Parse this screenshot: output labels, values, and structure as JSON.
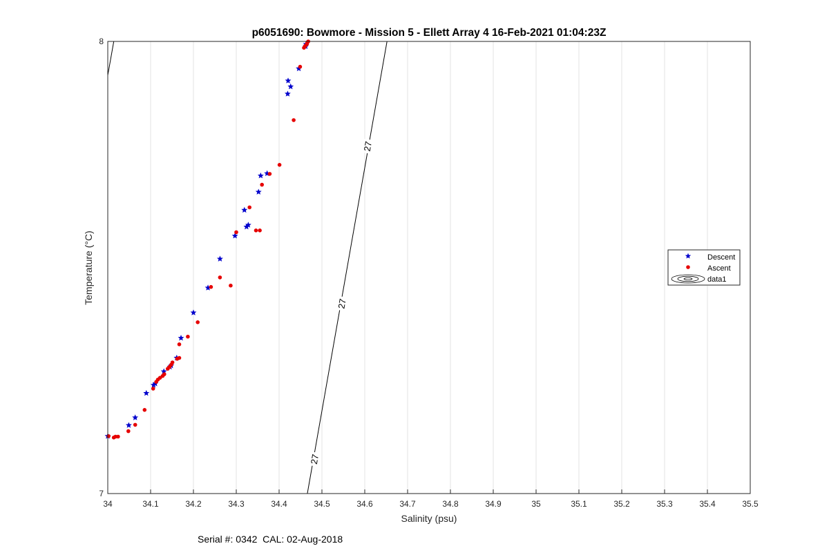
{
  "chart_data": {
    "type": "scatter",
    "title": "p6051690: Bowmore - Mission 5 - Ellett Array 4 16-Feb-2021 01:04:23Z",
    "xlabel": "Salinity (psu)",
    "ylabel": "Temperature (°C)",
    "xlim": [
      34,
      35.5
    ],
    "ylim": [
      7,
      8
    ],
    "x_ticks": [
      "34",
      "34.1",
      "34.2",
      "34.3",
      "34.4",
      "34.5",
      "34.6",
      "34.7",
      "34.8",
      "34.9",
      "35",
      "35.1",
      "35.2",
      "35.3",
      "35.4",
      "35.5"
    ],
    "y_ticks": [
      "7",
      "8"
    ],
    "grid": true,
    "legend_position": "right",
    "legend": [
      "Descent",
      "Ascent",
      "data1"
    ],
    "colors": {
      "descent": "#0000cc",
      "ascent": "#e60000",
      "contour": "#000000"
    },
    "series": [
      {
        "name": "Descent",
        "marker": "pentagram",
        "points": [
          [
            34.463,
            7.994
          ],
          [
            34.462,
            7.989
          ],
          [
            34.446,
            7.94
          ],
          [
            34.421,
            7.913
          ],
          [
            34.427,
            7.9
          ],
          [
            34.42,
            7.884
          ],
          [
            34.372,
            7.708
          ],
          [
            34.357,
            7.703
          ],
          [
            34.352,
            7.667
          ],
          [
            34.319,
            7.627
          ],
          [
            34.324,
            7.59
          ],
          [
            34.328,
            7.594
          ],
          [
            34.297,
            7.57
          ],
          [
            34.262,
            7.519
          ],
          [
            34.234,
            7.455
          ],
          [
            34.2,
            7.4
          ],
          [
            34.171,
            7.344
          ],
          [
            34.161,
            7.3
          ],
          [
            34.148,
            7.283
          ],
          [
            34.145,
            7.28
          ],
          [
            34.131,
            7.27
          ],
          [
            34.111,
            7.243
          ],
          [
            34.107,
            7.24
          ],
          [
            34.09,
            7.222
          ],
          [
            34.064,
            7.168
          ],
          [
            34.049,
            7.151
          ],
          [
            34.0,
            7.127
          ]
        ]
      },
      {
        "name": "Ascent",
        "marker": "dot",
        "points": [
          [
            34.468,
            8.0
          ],
          [
            34.466,
            7.998
          ],
          [
            34.465,
            7.994
          ],
          [
            34.461,
            7.99
          ],
          [
            34.458,
            7.986
          ],
          [
            34.449,
            7.944
          ],
          [
            34.434,
            7.826
          ],
          [
            34.401,
            7.727
          ],
          [
            34.378,
            7.707
          ],
          [
            34.36,
            7.683
          ],
          [
            34.331,
            7.633
          ],
          [
            34.355,
            7.582
          ],
          [
            34.346,
            7.582
          ],
          [
            34.3,
            7.578
          ],
          [
            34.262,
            7.478
          ],
          [
            34.287,
            7.46
          ],
          [
            34.241,
            7.457
          ],
          [
            34.21,
            7.379
          ],
          [
            34.187,
            7.347
          ],
          [
            34.167,
            7.33
          ],
          [
            34.167,
            7.3
          ],
          [
            34.162,
            7.298
          ],
          [
            34.151,
            7.29
          ],
          [
            34.148,
            7.285
          ],
          [
            34.144,
            7.28
          ],
          [
            34.14,
            7.276
          ],
          [
            34.132,
            7.264
          ],
          [
            34.128,
            7.26
          ],
          [
            34.122,
            7.256
          ],
          [
            34.117,
            7.252
          ],
          [
            34.113,
            7.247
          ],
          [
            34.106,
            7.232
          ],
          [
            34.086,
            7.185
          ],
          [
            34.064,
            7.152
          ],
          [
            34.048,
            7.138
          ],
          [
            34.024,
            7.126
          ],
          [
            34.018,
            7.126
          ],
          [
            34.014,
            7.124
          ],
          [
            34.002,
            7.127
          ]
        ]
      },
      {
        "name": "data1",
        "type": "contour",
        "level_label": "27",
        "lines": [
          [
            [
              34.466,
              7.0
            ],
            [
              34.652,
              8.0
            ]
          ],
          [
            [
              34.0,
              7.925
            ],
            [
              34.014,
              8.0
            ]
          ]
        ],
        "labels": [
          {
            "x": 34.607,
            "y": 7.768,
            "text": "27"
          },
          {
            "x": 34.547,
            "y": 7.42,
            "text": "27"
          },
          {
            "x": 34.483,
            "y": 7.076,
            "text": "27"
          }
        ]
      }
    ]
  },
  "footer": {
    "serial_text": "Serial #: 0342  CAL: 02-Aug-2018"
  }
}
